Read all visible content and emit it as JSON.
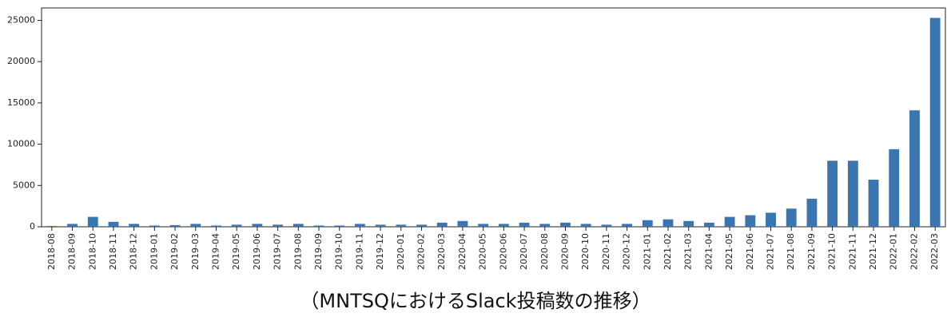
{
  "chart_data": {
    "type": "bar",
    "caption": "（MNTSQにおけるSlack投稿数の推移）",
    "categories": [
      "2018-08",
      "2018-09",
      "2018-10",
      "2018-11",
      "2018-12",
      "2019-01",
      "2019-02",
      "2019-03",
      "2019-04",
      "2019-05",
      "2019-06",
      "2019-07",
      "2019-08",
      "2019-09",
      "2019-10",
      "2019-11",
      "2019-12",
      "2020-01",
      "2020-02",
      "2020-03",
      "2020-04",
      "2020-05",
      "2020-06",
      "2020-07",
      "2020-08",
      "2020-09",
      "2020-10",
      "2020-11",
      "2020-12",
      "2021-01",
      "2021-02",
      "2021-03",
      "2021-04",
      "2021-05",
      "2021-06",
      "2021-07",
      "2021-08",
      "2021-09",
      "2021-10",
      "2021-11",
      "2021-12",
      "2022-01",
      "2022-02",
      "2022-03"
    ],
    "values": [
      100,
      350,
      1200,
      600,
      350,
      150,
      200,
      350,
      150,
      250,
      350,
      250,
      350,
      150,
      150,
      350,
      250,
      250,
      250,
      500,
      700,
      350,
      350,
      500,
      350,
      500,
      350,
      250,
      350,
      800,
      900,
      700,
      500,
      1200,
      1400,
      1700,
      2200,
      3400,
      8000,
      8000,
      5700,
      9400,
      14100,
      25300
    ],
    "color": "#3a75b0",
    "ylim": [
      0,
      26500
    ],
    "yticks": [
      0,
      5000,
      10000,
      15000,
      20000,
      25000
    ]
  }
}
